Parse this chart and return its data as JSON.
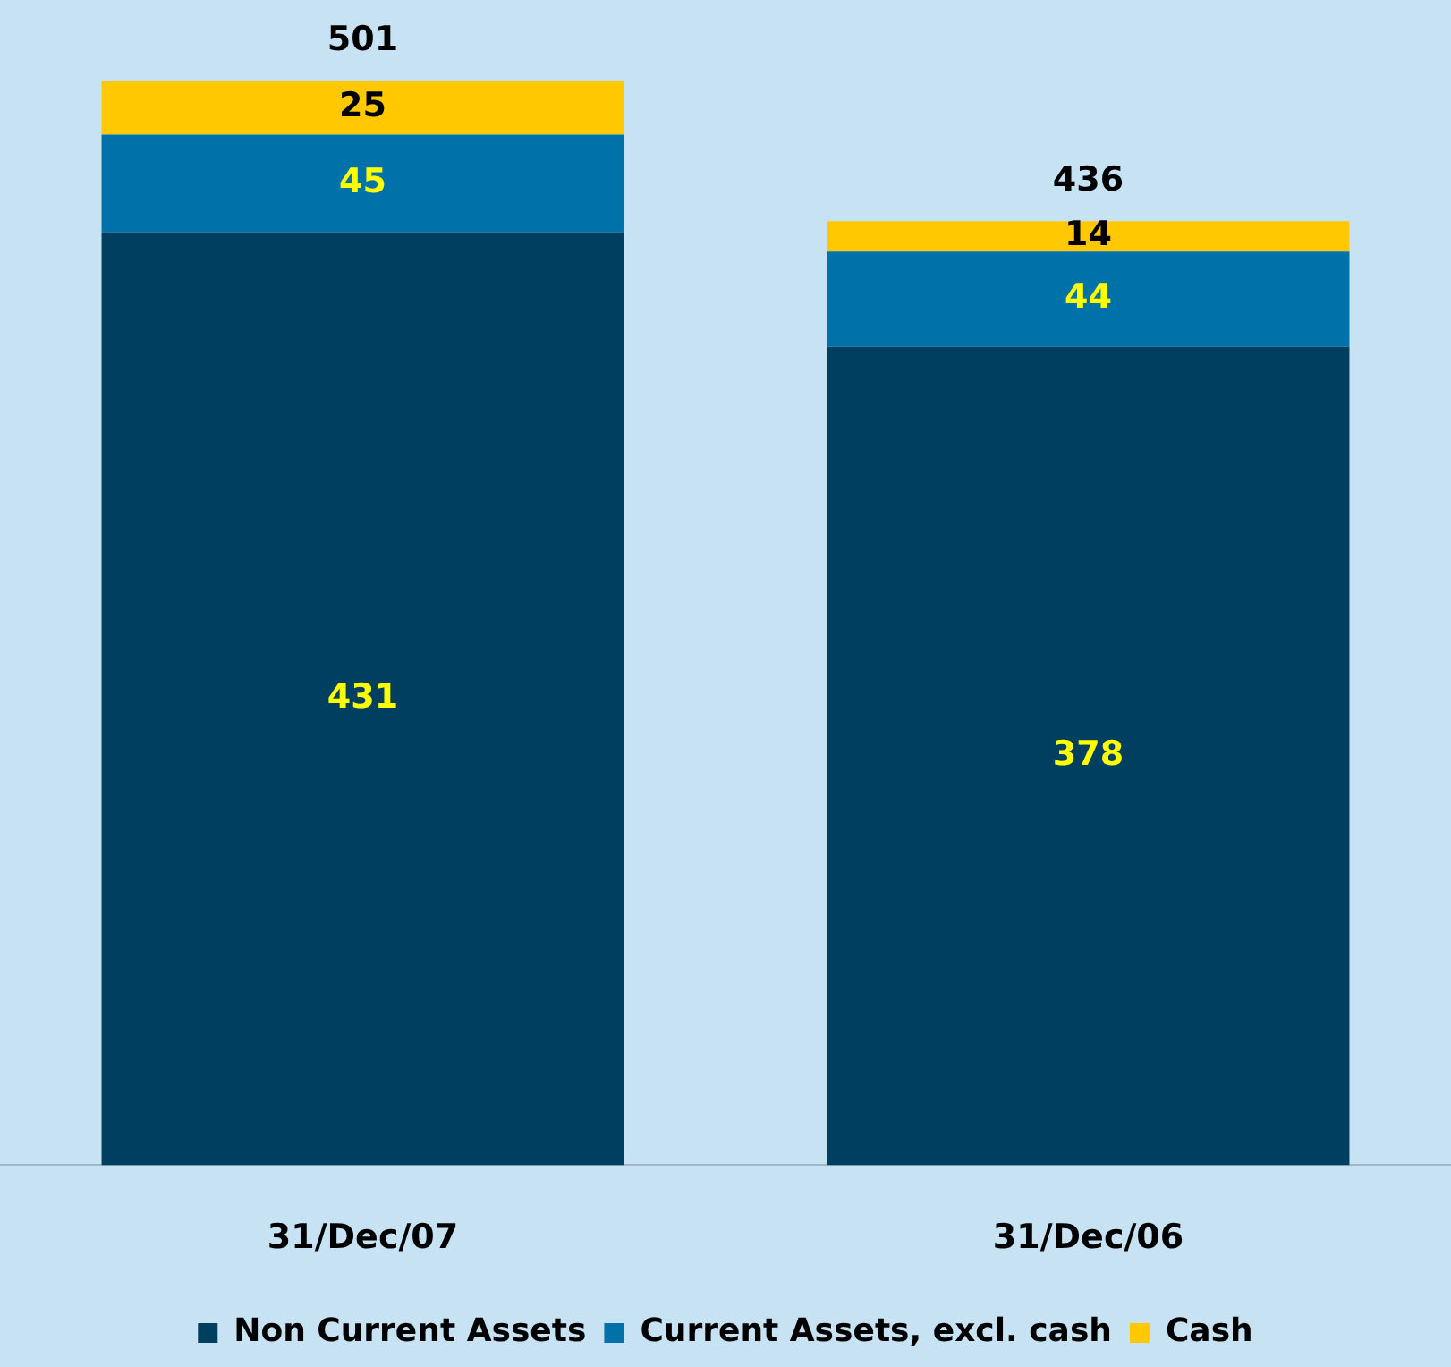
{
  "chart_data": {
    "type": "bar",
    "stacked": true,
    "categories": [
      "31/Dec/07",
      "31/Dec/06"
    ],
    "series": [
      {
        "name": "Non Current Assets",
        "color": "#003f5f",
        "values": [
          431,
          378
        ]
      },
      {
        "name": "Current Assets, excl. cash",
        "color": "#0072aa",
        "values": [
          45,
          44
        ]
      },
      {
        "name": "Cash",
        "color": "#ffc800",
        "values": [
          25,
          14
        ]
      }
    ],
    "data_labels": true,
    "totals": [
      "501",
      "436"
    ],
    "legend": "bottom",
    "grid": false,
    "tick_labels": "x"
  }
}
